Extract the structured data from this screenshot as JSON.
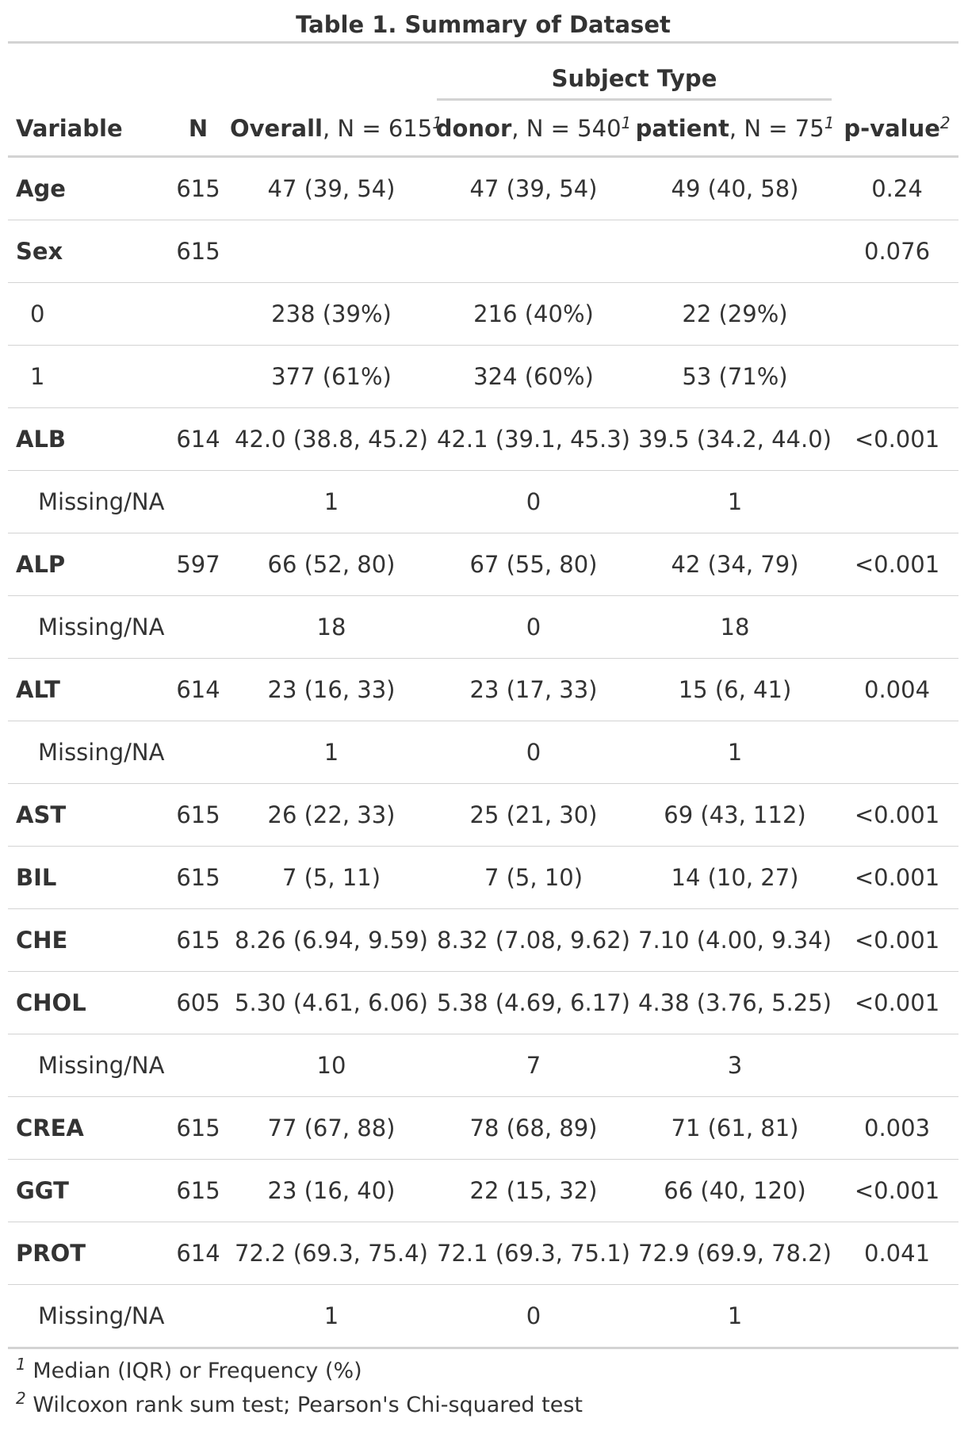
{
  "title": "Table 1. Summary of Dataset",
  "spanner": "Subject Type",
  "headers": {
    "variable": "Variable",
    "n": "N",
    "overall_bold": "Overall",
    "overall_rest": ", N = 615",
    "overall_sup": "1",
    "donor_bold": "donor",
    "donor_rest": ", N = 540",
    "donor_sup": "1",
    "patient_bold": "patient",
    "patient_rest": ", N = 75",
    "patient_sup": "1",
    "pvalue": "p-value",
    "pvalue_sup": "2"
  },
  "rows": [
    {
      "type": "var",
      "label": "Age",
      "n": "615",
      "overall": "47 (39, 54)",
      "donor": "47 (39, 54)",
      "patient": "49 (40, 58)",
      "p": "0.24"
    },
    {
      "type": "var",
      "label": "Sex",
      "n": "615",
      "overall": "",
      "donor": "",
      "patient": "",
      "p": "0.076"
    },
    {
      "type": "level",
      "label": "0",
      "n": "",
      "overall": "238 (39%)",
      "donor": "216 (40%)",
      "patient": "22 (29%)",
      "p": ""
    },
    {
      "type": "level",
      "label": "1",
      "n": "",
      "overall": "377 (61%)",
      "donor": "324 (60%)",
      "patient": "53 (71%)",
      "p": ""
    },
    {
      "type": "var",
      "label": "ALB",
      "n": "614",
      "overall": "42.0 (38.8, 45.2)",
      "donor": "42.1 (39.1, 45.3)",
      "patient": "39.5 (34.2, 44.0)",
      "p": "<0.001"
    },
    {
      "type": "missing",
      "label": "Missing/NA",
      "n": "",
      "overall": "1",
      "donor": "0",
      "patient": "1",
      "p": ""
    },
    {
      "type": "var",
      "label": "ALP",
      "n": "597",
      "overall": "66 (52, 80)",
      "donor": "67 (55, 80)",
      "patient": "42 (34, 79)",
      "p": "<0.001"
    },
    {
      "type": "missing",
      "label": "Missing/NA",
      "n": "",
      "overall": "18",
      "donor": "0",
      "patient": "18",
      "p": ""
    },
    {
      "type": "var",
      "label": "ALT",
      "n": "614",
      "overall": "23 (16, 33)",
      "donor": "23 (17, 33)",
      "patient": "15 (6, 41)",
      "p": "0.004"
    },
    {
      "type": "missing",
      "label": "Missing/NA",
      "n": "",
      "overall": "1",
      "donor": "0",
      "patient": "1",
      "p": ""
    },
    {
      "type": "var",
      "label": "AST",
      "n": "615",
      "overall": "26 (22, 33)",
      "donor": "25 (21, 30)",
      "patient": "69 (43, 112)",
      "p": "<0.001"
    },
    {
      "type": "var",
      "label": "BIL",
      "n": "615",
      "overall": "7 (5, 11)",
      "donor": "7 (5, 10)",
      "patient": "14 (10, 27)",
      "p": "<0.001"
    },
    {
      "type": "var",
      "label": "CHE",
      "n": "615",
      "overall": "8.26 (6.94, 9.59)",
      "donor": "8.32 (7.08, 9.62)",
      "patient": "7.10 (4.00, 9.34)",
      "p": "<0.001"
    },
    {
      "type": "var",
      "label": "CHOL",
      "n": "605",
      "overall": "5.30 (4.61, 6.06)",
      "donor": "5.38 (4.69, 6.17)",
      "patient": "4.38 (3.76, 5.25)",
      "p": "<0.001"
    },
    {
      "type": "missing",
      "label": "Missing/NA",
      "n": "",
      "overall": "10",
      "donor": "7",
      "patient": "3",
      "p": ""
    },
    {
      "type": "var",
      "label": "CREA",
      "n": "615",
      "overall": "77 (67, 88)",
      "donor": "78 (68, 89)",
      "patient": "71 (61, 81)",
      "p": "0.003"
    },
    {
      "type": "var",
      "label": "GGT",
      "n": "615",
      "overall": "23 (16, 40)",
      "donor": "22 (15, 32)",
      "patient": "66 (40, 120)",
      "p": "<0.001"
    },
    {
      "type": "var",
      "label": "PROT",
      "n": "614",
      "overall": "72.2 (69.3, 75.4)",
      "donor": "72.1 (69.3, 75.1)",
      "patient": "72.9 (69.9, 78.2)",
      "p": "0.041"
    },
    {
      "type": "missing",
      "label": "Missing/NA",
      "n": "",
      "overall": "1",
      "donor": "0",
      "patient": "1",
      "p": ""
    }
  ],
  "footnotes": [
    {
      "mark": "1",
      "text": " Median (IQR) or Frequency (%)"
    },
    {
      "mark": "2",
      "text": " Wilcoxon rank sum test; Pearson's Chi-squared test"
    }
  ]
}
